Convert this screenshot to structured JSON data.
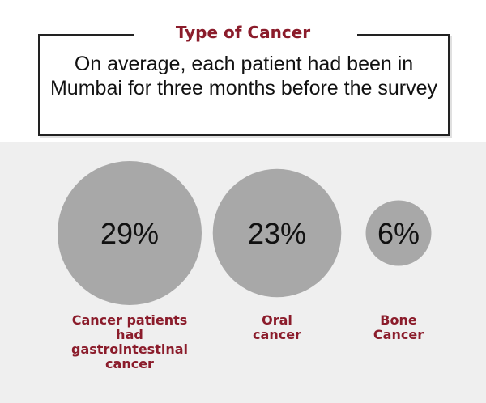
{
  "header": {
    "title": "Type of Cancer",
    "note": "On average, each patient had been in Mumbai for three months before the survey"
  },
  "colors": {
    "accent": "#8b1c2b",
    "bubble": "#a8a8a8",
    "panel": "#efefef"
  },
  "chart_data": {
    "type": "bubble",
    "title": "Type of Cancer",
    "categories": [
      "Cancer patients had gastrointestinal cancer",
      "Oral cancer",
      "Bone Cancer"
    ],
    "values": [
      29,
      23,
      6
    ],
    "unit": "%",
    "value_labels": [
      "29%",
      "23%",
      "6%"
    ],
    "label_lines": [
      [
        "Cancer patients",
        "had",
        "gastrointestinal",
        "cancer"
      ],
      [
        "Oral",
        "cancer"
      ],
      [
        "Bone",
        "Cancer"
      ]
    ]
  }
}
